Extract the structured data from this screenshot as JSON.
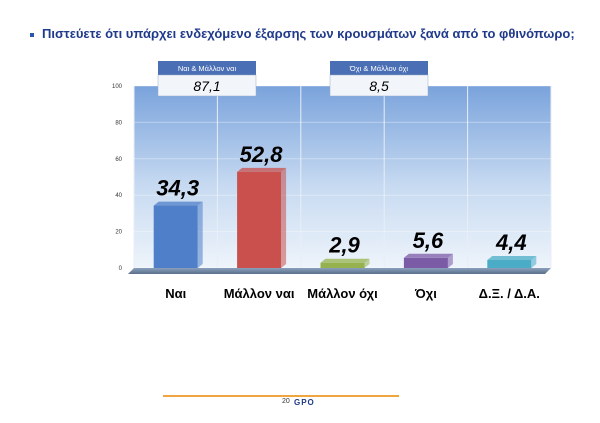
{
  "title": "Πιστεύετε ότι υπάρχει ενδεχόμενο έξαρσης των κρουσμάτων ξανά από το φθινόπωρο;",
  "summaries": [
    {
      "label": "Ναι & Μάλλον ναι",
      "value": "87,1"
    },
    {
      "label": "Όχι & Μάλλον όχι",
      "value": "8,5"
    }
  ],
  "footer": {
    "page": "20",
    "logo": "GPO"
  },
  "chart_data": {
    "type": "bar",
    "title": "Πιστεύετε ότι υπάρχει ενδεχόμενο έξαρσης των κρουσμάτων ξανά από το φθινόπωρο;",
    "categories": [
      "Ναι",
      "Μάλλον ναι",
      "Μάλλον όχι",
      "Όχι",
      "Δ.Ξ. / Δ.Α."
    ],
    "values": [
      34.3,
      52.8,
      2.9,
      5.6,
      4.4
    ],
    "value_labels": [
      "34,3",
      "52,8",
      "2,9",
      "5,6",
      "4,4"
    ],
    "ylim": [
      0,
      100
    ],
    "yticks": [
      0,
      20,
      40,
      60,
      80,
      100
    ],
    "grid": true,
    "colors": [
      "#4f7fc8",
      "#c9504c",
      "#96b24e",
      "#7b5aa6",
      "#4aacc6"
    ]
  }
}
